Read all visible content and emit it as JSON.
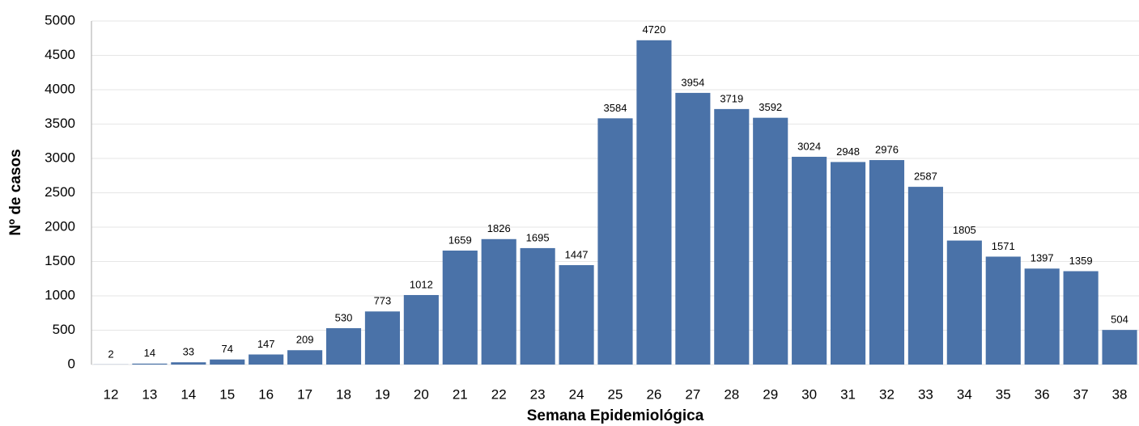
{
  "chart_data": {
    "type": "bar",
    "xlabel": "Semana Epidemiológica",
    "ylabel": "Nº de casos",
    "categories": [
      "12",
      "13",
      "14",
      "15",
      "16",
      "17",
      "18",
      "19",
      "20",
      "21",
      "22",
      "23",
      "24",
      "25",
      "26",
      "27",
      "28",
      "29",
      "30",
      "31",
      "32",
      "33",
      "34",
      "35",
      "36",
      "37",
      "38"
    ],
    "values": [
      2,
      14,
      33,
      74,
      147,
      209,
      530,
      773,
      1012,
      1659,
      1826,
      1695,
      1447,
      3584,
      4720,
      3954,
      3719,
      3592,
      3024,
      2948,
      2976,
      2587,
      1805,
      1571,
      1397,
      1359,
      504
    ],
    "color": "#4a72a8",
    "ylim": [
      0,
      5000
    ],
    "yticks": [
      0,
      500,
      1000,
      1500,
      2000,
      2500,
      3000,
      3500,
      4000,
      4500,
      5000
    ],
    "grid": true
  }
}
